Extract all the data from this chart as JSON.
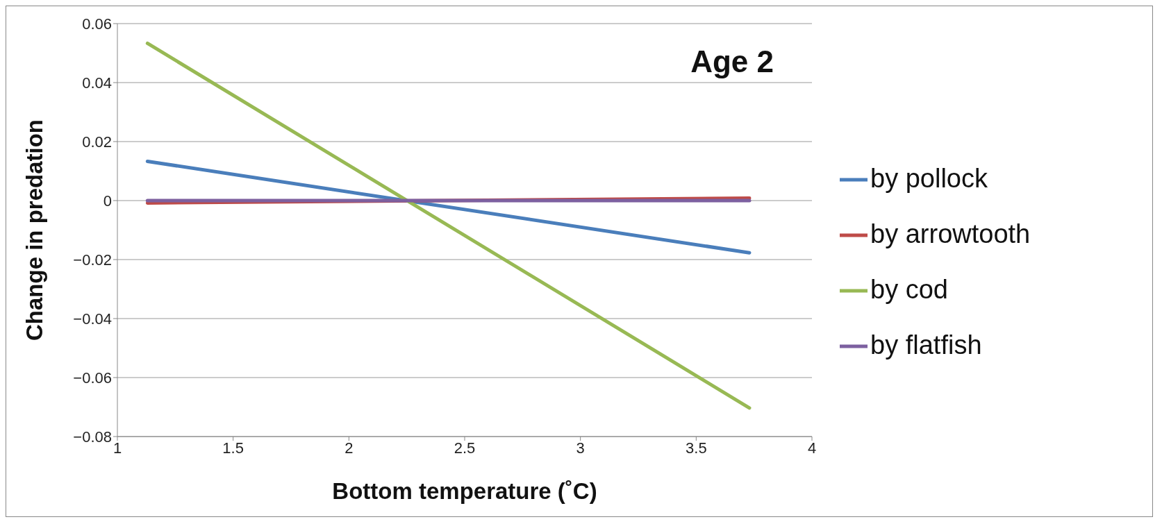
{
  "chart_data": {
    "type": "line",
    "title": "Age 2",
    "xlabel": "Bottom temperature (˚C)",
    "ylabel": "Change in predation",
    "x": [
      1.13,
      3.73
    ],
    "series": [
      {
        "name": "by pollock",
        "color": "#4a7ebb",
        "values": [
          0.0133,
          -0.0177
        ]
      },
      {
        "name": "by arrowtooth",
        "color": "#be4b48",
        "values": [
          -0.0008,
          0.0008
        ]
      },
      {
        "name": "by cod",
        "color": "#98b954",
        "values": [
          0.0533,
          -0.0703
        ]
      },
      {
        "name": "by flatfish",
        "color": "#7d60a0",
        "values": [
          0,
          0
        ]
      }
    ],
    "xlim": [
      1,
      4
    ],
    "xticks": [
      1,
      1.5,
      2,
      2.5,
      3,
      3.5,
      4
    ],
    "ylim": [
      -0.08,
      0.06
    ],
    "yticks": [
      -0.08,
      -0.06,
      -0.04,
      -0.02,
      0,
      0.02,
      0.04,
      0.06
    ],
    "grid": "y",
    "legend": "right",
    "marker": "none",
    "line_style": "solid"
  }
}
